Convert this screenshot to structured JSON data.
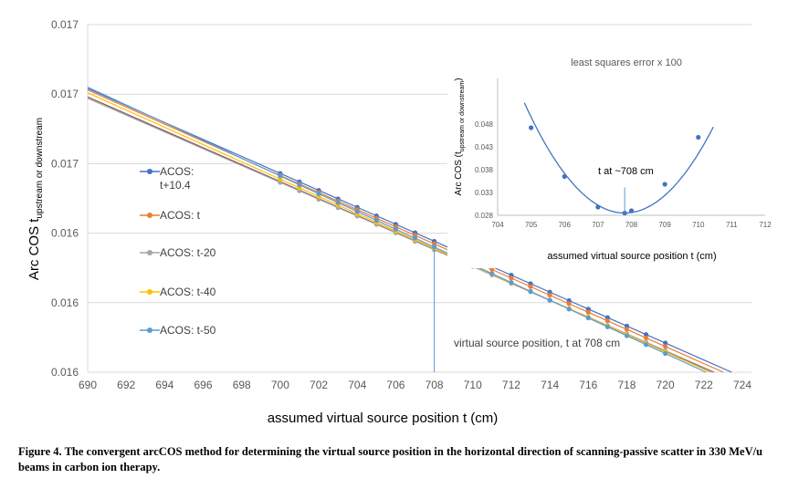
{
  "chart_data": [
    {
      "type": "line",
      "title": "",
      "xlabel": "assumed virtual source position t (cm)",
      "ylabel_main": "Arc COS t",
      "ylabel_sub": "upstream or downstream",
      "xlim": [
        690,
        724
      ],
      "xticks": [
        690,
        692,
        694,
        696,
        698,
        700,
        702,
        704,
        706,
        708,
        710,
        712,
        714,
        716,
        718,
        720,
        722,
        724
      ],
      "ylim": [
        0,
        5
      ],
      "yticks": [
        0,
        1,
        2,
        3,
        4,
        5
      ],
      "ytick_labels": [
        "0.016",
        "0.016",
        "0.016",
        "0.017",
        "0.017",
        "0.017"
      ],
      "grid": "horizontal",
      "legend_position": "left",
      "marker_x": [
        700,
        701,
        702,
        703,
        704,
        705,
        706,
        707,
        708,
        709,
        710,
        711,
        712,
        713,
        714,
        715,
        716,
        717,
        718,
        719,
        720
      ],
      "series": [
        {
          "name": "ACOS: t+10.4",
          "color": "#4472C4",
          "y690": 4.08,
          "y720": 0.42,
          "slope": -0.122
        },
        {
          "name": "ACOS: t",
          "color": "#ED7D31",
          "y690": 4.06,
          "y720": 0.37,
          "slope": -0.123
        },
        {
          "name": "ACOS: t-20",
          "color": "#A5A5A5",
          "y690": 3.94,
          "y720": 0.31,
          "slope": -0.121
        },
        {
          "name": "ACOS: t-40",
          "color": "#FFC000",
          "y690": 4.02,
          "y720": 0.29,
          "slope": -0.1243
        },
        {
          "name": "ACOS: t-50",
          "color": "#5B9BD5",
          "y690": 4.1,
          "y720": 0.27,
          "slope": -0.1277
        }
      ],
      "extra_series": [
        {
          "color": "#7F4F5F",
          "y690": 3.96,
          "slope": -0.1219
        }
      ],
      "annotation": {
        "text": "virtual source position, t  at 708 cm",
        "x": 708
      }
    },
    {
      "type": "line",
      "title": "least squares error x 100",
      "xlabel": "assumed virtual source position t (cm)",
      "ylabel_main": "Arc COS (t",
      "ylabel_sub": "upstream or downstream",
      "ylabel_end": ")",
      "xlim": [
        704,
        712
      ],
      "xticks": [
        704,
        705,
        706,
        707,
        708,
        709,
        710,
        711,
        712
      ],
      "ylim": [
        0.028,
        0.05
      ],
      "yticks": [
        0.028,
        0.033,
        0.038,
        0.043,
        0.048
      ],
      "ytick_labels": [
        "0.028",
        "0.033",
        "0.038",
        "0.043",
        "0.048"
      ],
      "series": [
        {
          "name": "least squares error x 100",
          "color": "#4472C4",
          "points": [
            [
              705,
              0.0472
            ],
            [
              706,
              0.0365
            ],
            [
              707,
              0.0298
            ],
            [
              707.8,
              0.0285
            ],
            [
              708,
              0.029
            ],
            [
              709,
              0.0348
            ],
            [
              710,
              0.0451
            ]
          ]
        }
      ],
      "curve_x_range": [
        704.8,
        710.45
      ],
      "annotation": {
        "text": "t  at ~708 cm",
        "x": 707.8
      }
    }
  ],
  "caption": "Figure 4. The convergent arcCOS method for determining the virtual source position in the horizontal direction of scanning-passive scatter in 330 MeV/u beams in carbon ion therapy."
}
